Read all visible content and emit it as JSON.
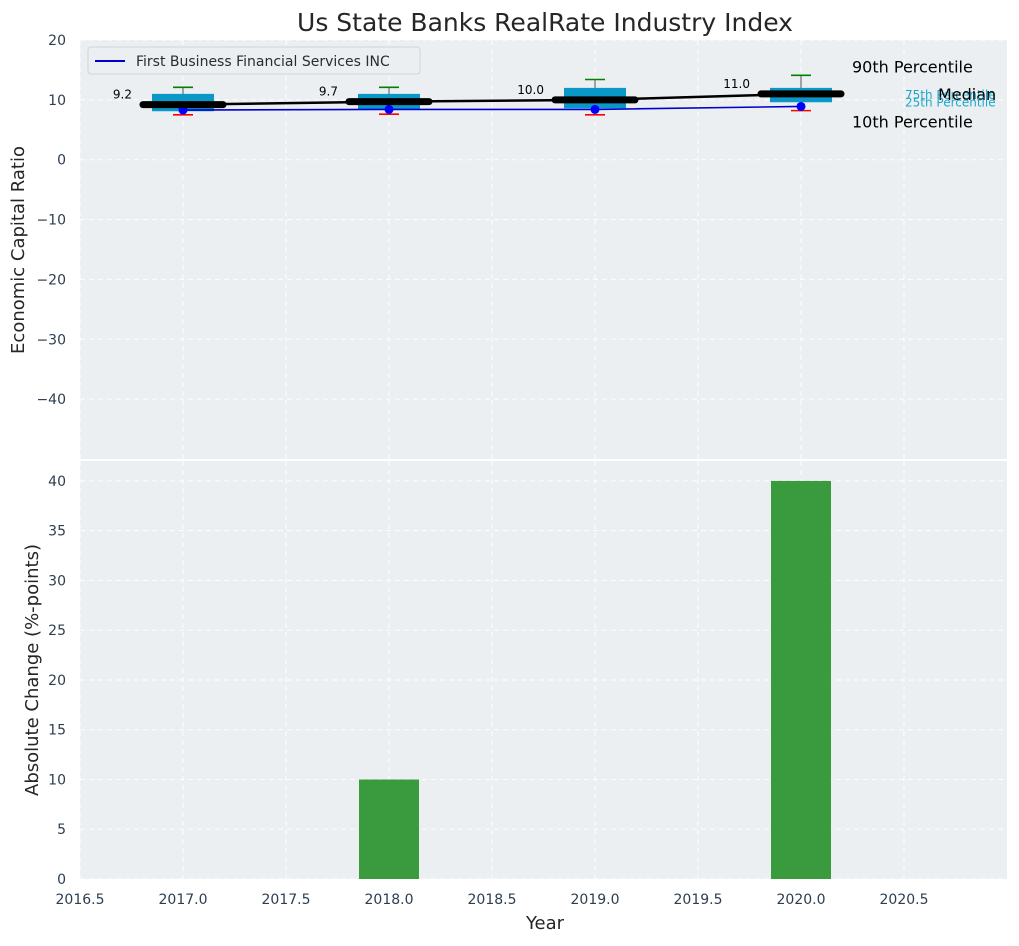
{
  "colors": {
    "panel_bg": "#ebeff1",
    "box_fill": "#0a98c8",
    "median_line": "#000000",
    "company_line": "#0000cc",
    "company_dot": "#0000ff",
    "whisker_high": "#008000",
    "whisker_low": "#ff0000",
    "bar_fill": "#3a9b3e",
    "quartile_label": "#1ea7c9"
  },
  "chart_data": [
    {
      "type": "box",
      "title": "Us State Banks RealRate Industry Index",
      "ylabel": "Economic Capital Ratio",
      "xlim": [
        2016.5,
        2021.0
      ],
      "ylim": [
        -50,
        20
      ],
      "yticks": [
        20,
        10,
        0,
        -10,
        -20,
        -30,
        -40
      ],
      "ytick_labels": [
        "20",
        "10",
        "0",
        "−10",
        "−20",
        "−30",
        "−40"
      ],
      "grid": true,
      "legend": {
        "placement": "top-left",
        "entries": [
          "First Business Financial Services INC"
        ]
      },
      "x": [
        2017,
        2018,
        2019,
        2020
      ],
      "p10": [
        7.5,
        7.6,
        7.5,
        8.2
      ],
      "p25": [
        8.1,
        8.4,
        8.6,
        9.6
      ],
      "median": [
        9.2,
        9.7,
        10.0,
        11.0
      ],
      "p75": [
        11.0,
        11.0,
        12.0,
        12.0
      ],
      "p90": [
        12.1,
        12.1,
        13.4,
        14.1
      ],
      "median_labels": [
        "9.2",
        "9.7",
        "10.0",
        "11.0"
      ],
      "series": [
        {
          "name": "First Business Financial Services INC",
          "x": [
            2017,
            2018,
            2019,
            2020
          ],
          "values": [
            8.3,
            8.4,
            8.4,
            8.9
          ]
        }
      ],
      "annotations": {
        "p90": "90th Percentile",
        "p75": "75th Percentile",
        "median": "Median",
        "p25": "25th Percentile",
        "p10": "10th Percentile"
      }
    },
    {
      "type": "bar",
      "xlabel": "Year",
      "ylabel": "Absolute Change (%-points)",
      "xlim": [
        2016.5,
        2021.0
      ],
      "ylim": [
        0,
        42
      ],
      "yticks": [
        0,
        5,
        10,
        15,
        20,
        25,
        30,
        35,
        40
      ],
      "xticks": [
        2016.5,
        2017.0,
        2017.5,
        2018.0,
        2018.5,
        2019.0,
        2019.5,
        2020.0,
        2020.5
      ],
      "xtick_labels": [
        "2016.5",
        "2017.0",
        "2017.5",
        "2018.0",
        "2018.5",
        "2019.0",
        "2019.5",
        "2020.0",
        "2020.5"
      ],
      "grid": true,
      "x": [
        2017,
        2018,
        2019,
        2020
      ],
      "values": [
        0,
        10,
        0,
        40
      ]
    }
  ]
}
